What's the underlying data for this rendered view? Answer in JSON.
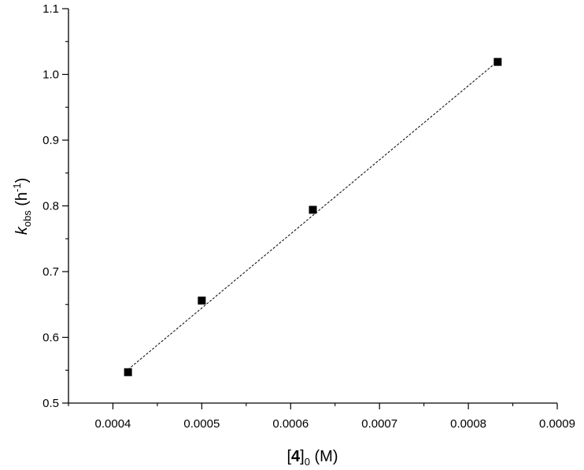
{
  "chart_data": {
    "type": "scatter",
    "xlabel": {
      "open": "[",
      "bold": "4",
      "close": "]",
      "sub": "0",
      "unit": " (M)"
    },
    "ylabel": {
      "symbol": "k",
      "sub": "obs",
      "unit_open": " (h",
      "sup": "-1",
      "unit_close": ")"
    },
    "xlim": [
      0.00035,
      0.0009
    ],
    "ylim": [
      0.5,
      1.1
    ],
    "xticks": [
      0.0004,
      0.0005,
      0.0006,
      0.0007,
      0.0008,
      0.0009
    ],
    "xtick_labels": [
      "0.0004",
      "0.0005",
      "0.0006",
      "0.0007",
      "0.0008",
      "0.0009"
    ],
    "yticks": [
      0.5,
      0.6,
      0.7,
      0.8,
      0.9,
      1.0,
      1.1
    ],
    "ytick_labels": [
      "0.5",
      "0.6",
      "0.7",
      "0.8",
      "0.9",
      "1.0",
      "1.1"
    ],
    "grid": false,
    "series": [
      {
        "marker": "square",
        "color": "#000000",
        "points": [
          {
            "x": 0.000417,
            "y": 0.547
          },
          {
            "x": 0.0005,
            "y": 0.656
          },
          {
            "x": 0.000625,
            "y": 0.794
          },
          {
            "x": 0.000833,
            "y": 1.019
          }
        ]
      }
    ],
    "fit_line": {
      "style": "dashed",
      "color": "#000000",
      "x": [
        0.000417,
        0.000833
      ],
      "y": [
        0.551,
        1.02
      ]
    }
  }
}
